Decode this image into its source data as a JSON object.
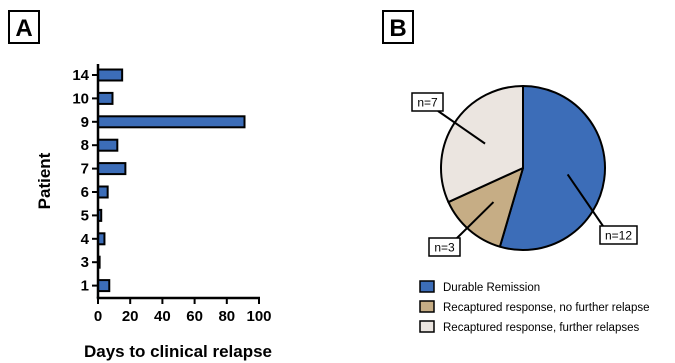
{
  "panels": {
    "a_letter": "A",
    "b_letter": "B"
  },
  "chart_data": [
    {
      "type": "bar",
      "orientation": "horizontal",
      "panel": "A",
      "categories": [
        "14",
        "10",
        "9",
        "8",
        "7",
        "6",
        "5",
        "4",
        "3",
        "1"
      ],
      "values": [
        15,
        9,
        91,
        12,
        17,
        6,
        2,
        4,
        1,
        7
      ],
      "xlabel": "Days to clinical relapse",
      "ylabel": "Patient",
      "xlim": [
        0,
        100
      ],
      "xticks": [
        "0",
        "20",
        "40",
        "60",
        "80",
        "100"
      ],
      "grid": false,
      "color": "#3c6db8"
    },
    {
      "type": "pie",
      "panel": "B",
      "slices": [
        {
          "label": "Durable Remission",
          "value": 12,
          "annotation": "n=12",
          "color": "#3c6db8"
        },
        {
          "label": "Recaptured response, no further relapse",
          "value": 3,
          "annotation": "n=3",
          "color": "#c6ad85"
        },
        {
          "label": "Recaptured response, further relapses",
          "value": 7,
          "annotation": "n=7",
          "color": "#ebe5e0"
        }
      ],
      "legend": "bottom"
    }
  ]
}
